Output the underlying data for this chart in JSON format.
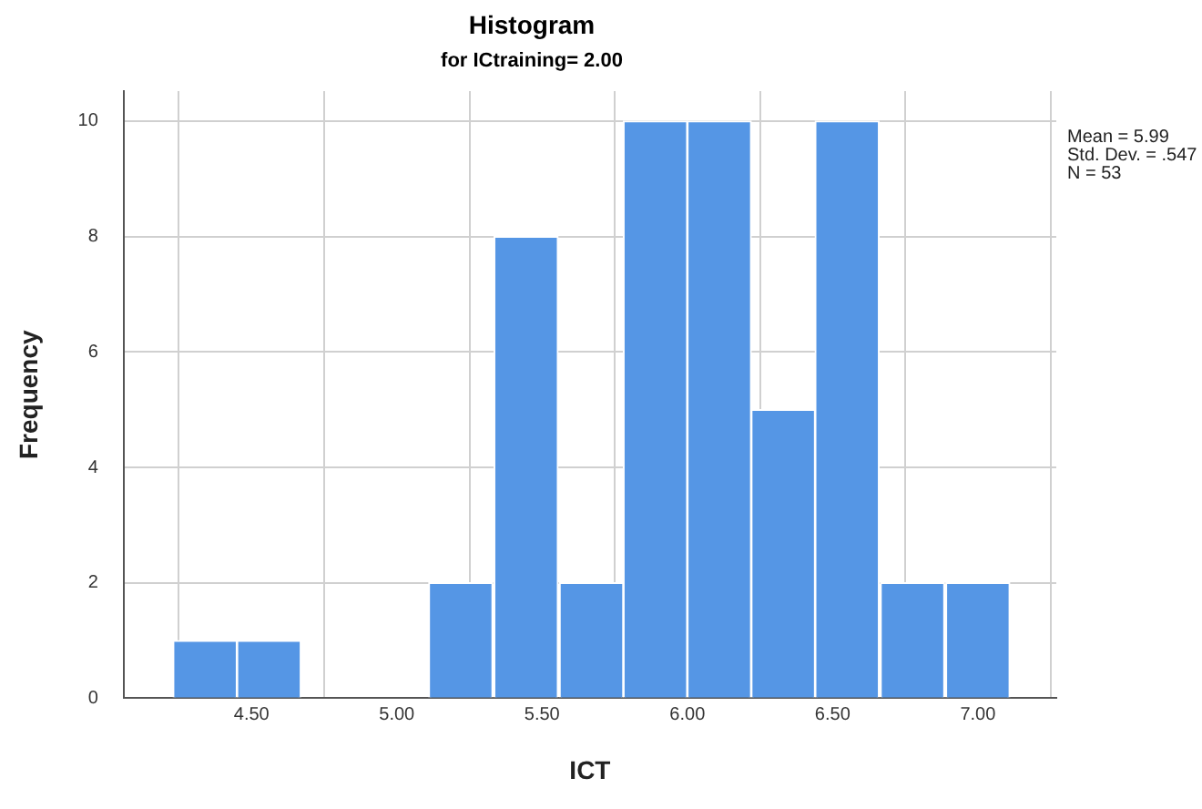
{
  "chart_data": {
    "type": "histogram",
    "title": "Histogram",
    "subtitle": "for ICtraining= 2.00",
    "xlabel": "ICT",
    "ylabel": "Frequency",
    "bins": [
      4.23,
      4.45,
      4.67,
      4.89,
      5.11,
      5.33,
      5.56,
      5.78,
      6.0,
      6.22,
      6.44,
      6.66,
      6.89,
      7.11
    ],
    "values": [
      1,
      1,
      0,
      0,
      2,
      8,
      2,
      10,
      10,
      5,
      10,
      2,
      2
    ],
    "color": "#5596e5",
    "xlim": [
      4.06,
      7.27
    ],
    "xticks": [
      {
        "value": 4.5,
        "label": "4.50"
      },
      {
        "value": 5,
        "label": "5.00"
      },
      {
        "value": 5.5,
        "label": "5.50"
      },
      {
        "value": 6,
        "label": "6.00"
      },
      {
        "value": 6.5,
        "label": "6.50"
      },
      {
        "value": 7,
        "label": "7.00"
      }
    ],
    "ylim": [
      0,
      10.52
    ],
    "yticks": [
      0,
      2,
      4,
      6,
      8,
      10
    ],
    "grid": true,
    "annotations": [
      "Mean = 5.99\nStd. Dev. = .547\nN = 53"
    ]
  }
}
